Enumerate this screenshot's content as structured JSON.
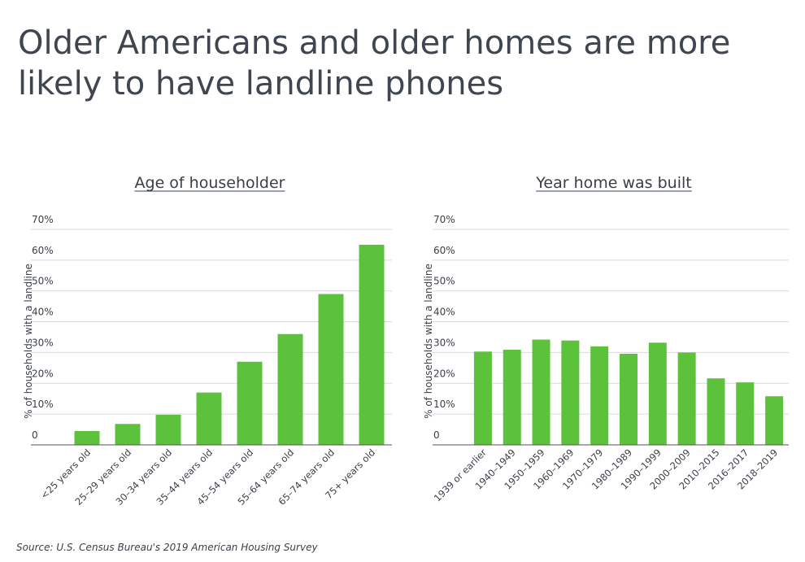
{
  "title": "Older Americans and older homes are more likely to have landline phones",
  "source": "Source: U.S. Census Bureau's 2019 American Housing Survey",
  "colors": {
    "bar": "#5cc23c",
    "grid": "#d9d9d9",
    "axis": "#555555"
  },
  "chart_data": [
    {
      "type": "bar",
      "title": "Age of householder",
      "ylabel": "% of households with a landline",
      "ylim": [
        0,
        70
      ],
      "yticks": [
        "0",
        "10%",
        "20%",
        "30%",
        "40%",
        "50%",
        "60%",
        "70%"
      ],
      "grid": true,
      "categories": [
        "<25 years old",
        "25–29 years old",
        "30–34 years old",
        "35–44 years old",
        "45–54 years old",
        "55–64 years old",
        "65–74 years old",
        "75+ years old"
      ],
      "values": [
        4.5,
        6.8,
        9.8,
        17,
        27,
        36,
        49,
        65
      ]
    },
    {
      "type": "bar",
      "title": "Year home was built",
      "ylabel": "% of households with a landline",
      "ylim": [
        0,
        70
      ],
      "yticks": [
        "0",
        "10%",
        "20%",
        "30%",
        "40%",
        "50%",
        "60%",
        "70%"
      ],
      "grid": true,
      "categories": [
        "1939 or earlier",
        "1940–1949",
        "1950–1959",
        "1960–1969",
        "1970–1979",
        "1980–1989",
        "1990–1999",
        "2000–2009",
        "2010–2015",
        "2016–2017",
        "2018–2019"
      ],
      "values": [
        30.3,
        30.9,
        34.2,
        33.9,
        32.0,
        29.6,
        33.2,
        30.0,
        21.6,
        20.3,
        15.8
      ]
    }
  ]
}
